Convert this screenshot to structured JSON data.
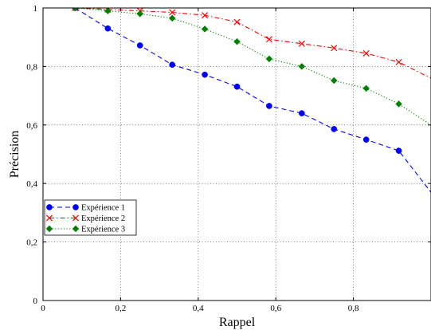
{
  "chart_data": {
    "type": "line",
    "xlabel": "Rappel",
    "ylabel": "Précision",
    "xlim": [
      0,
      1
    ],
    "ylim": [
      0,
      1
    ],
    "x_ticks": [
      0,
      0.2,
      0.4,
      0.6,
      0.8
    ],
    "x_tick_labels": [
      "0",
      "0,2",
      "0,4",
      "0,6",
      "0,8"
    ],
    "y_ticks": [
      0,
      0.2,
      0.4,
      0.6,
      0.8,
      1
    ],
    "y_tick_labels": [
      "0",
      "0,2",
      "0,4",
      "0,6",
      "0,8",
      "1"
    ],
    "grid": true,
    "legend_position": "left",
    "series": [
      {
        "name": "Expérience 1",
        "color": "#0000ff",
        "marker": "circle",
        "line_style": "dashed",
        "x": [
          0.083,
          0.167,
          0.25,
          0.333,
          0.417,
          0.5,
          0.583,
          0.667,
          0.75,
          0.833,
          0.917,
          1.0
        ],
        "y": [
          1.0,
          0.93,
          0.872,
          0.806,
          0.772,
          0.731,
          0.665,
          0.64,
          0.586,
          0.55,
          0.512,
          0.37
        ]
      },
      {
        "name": "Expérience 2",
        "color": "#ff0000",
        "marker": "cross",
        "line_style": "dashdot",
        "x": [
          0.083,
          0.167,
          0.25,
          0.333,
          0.417,
          0.5,
          0.583,
          0.667,
          0.75,
          0.833,
          0.917,
          1.0
        ],
        "y": [
          1.0,
          0.995,
          0.99,
          0.985,
          0.975,
          0.952,
          0.893,
          0.878,
          0.863,
          0.845,
          0.815,
          0.76
        ]
      },
      {
        "name": "Expérience 3",
        "color": "#008000",
        "marker": "diamond",
        "line_style": "dotted",
        "x": [
          0.083,
          0.167,
          0.25,
          0.333,
          0.417,
          0.5,
          0.583,
          0.667,
          0.75,
          0.833,
          0.917,
          1.0
        ],
        "y": [
          1.0,
          0.99,
          0.98,
          0.965,
          0.928,
          0.885,
          0.826,
          0.8,
          0.752,
          0.725,
          0.672,
          0.6
        ]
      }
    ]
  }
}
